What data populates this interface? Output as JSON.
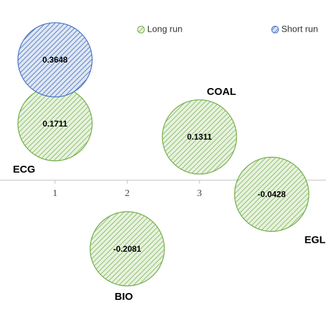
{
  "chart_data": {
    "type": "bubble",
    "series": [
      {
        "name": "Long run",
        "color": "#70ad47",
        "labels": [
          "ECG",
          "COAL",
          "EGL",
          "BIO"
        ],
        "x": [
          1,
          3,
          4,
          2
        ],
        "values": [
          0.1711,
          0.1311,
          -0.0428,
          -0.2081
        ]
      },
      {
        "name": "Short run",
        "color": "#4472c4",
        "x": [
          1
        ],
        "values": [
          0.3648
        ]
      }
    ],
    "xlim": [
      0.238,
      4.752
    ],
    "xticks": [
      1,
      2,
      3
    ],
    "ylim": [
      -0.442,
      0.546
    ]
  }
}
